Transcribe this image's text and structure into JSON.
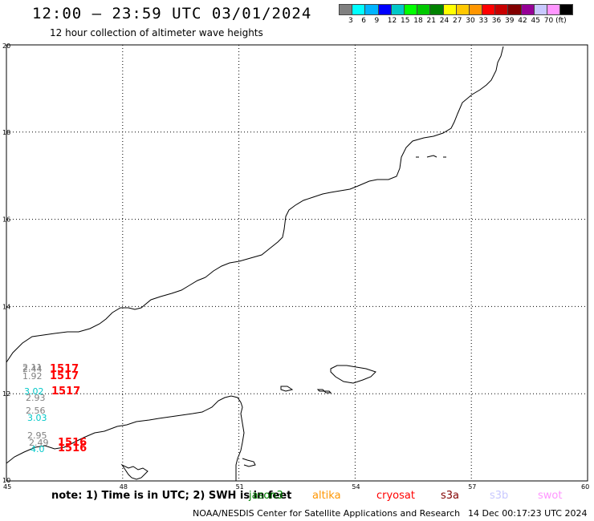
{
  "header": {
    "title": "12:00 — 23:59 UTC 03/01/2024",
    "subtitle": "12 hour collection of altimeter wave heights"
  },
  "color_scale": {
    "colors": [
      "#808080",
      "#00ffff",
      "#00b4ff",
      "#0000ff",
      "#00c8c8",
      "#00ff00",
      "#00c800",
      "#008200",
      "#ffff00",
      "#ffc800",
      "#ff9600",
      "#ff0000",
      "#c80000",
      "#820000",
      "#960096",
      "#c8c8ff",
      "#ff96ff",
      "#000000"
    ],
    "labels": [
      "3",
      "6",
      "9",
      "12",
      "15",
      "18",
      "21",
      "24",
      "27",
      "30",
      "33",
      "36",
      "39",
      "42",
      "45",
      "70 (ft)"
    ]
  },
  "axes": {
    "x_ticks": [
      "45",
      "48",
      "51",
      "54",
      "57",
      "60"
    ],
    "y_ticks": [
      "10",
      "12",
      "14",
      "16",
      "18",
      "20"
    ]
  },
  "observations": [
    {
      "text": "2.11",
      "color": "#808080"
    },
    {
      "text": "2.44",
      "color": "#808080"
    },
    {
      "text": "1517",
      "color": "#ff0000"
    },
    {
      "text": "1.92",
      "color": "#808080"
    },
    {
      "text": "1517",
      "color": "#ff0000"
    },
    {
      "text": "3.02",
      "color": "#00c8c8"
    },
    {
      "text": "1517",
      "color": "#ff0000"
    },
    {
      "text": "2.93",
      "color": "#808080"
    },
    {
      "text": "2.56",
      "color": "#808080"
    },
    {
      "text": "3.03",
      "color": "#00c8c8"
    },
    {
      "text": "2.95",
      "color": "#808080"
    },
    {
      "text": "2.49",
      "color": "#808080"
    },
    {
      "text": "1516",
      "color": "#ff0000"
    },
    {
      "text": "4.0",
      "color": "#00c8c8"
    },
    {
      "text": "1516",
      "color": "#ff0000"
    }
  ],
  "footer": {
    "note": "note: 1) Time is in UTC; 2) SWH is in feet",
    "satellites": [
      {
        "name": "jason3",
        "color": "#008200"
      },
      {
        "name": "altika",
        "color": "#ff9600"
      },
      {
        "name": "cryosat",
        "color": "#ff0000"
      },
      {
        "name": "s3a",
        "color": "#820000"
      },
      {
        "name": "s3b",
        "color": "#c8c8ff"
      },
      {
        "name": "swot",
        "color": "#ff96ff"
      }
    ],
    "credit": "NOAA/NESDIS Center for Satellite Applications and Research",
    "timestamp": "14 Dec 00:17:23 UTC 2024"
  }
}
